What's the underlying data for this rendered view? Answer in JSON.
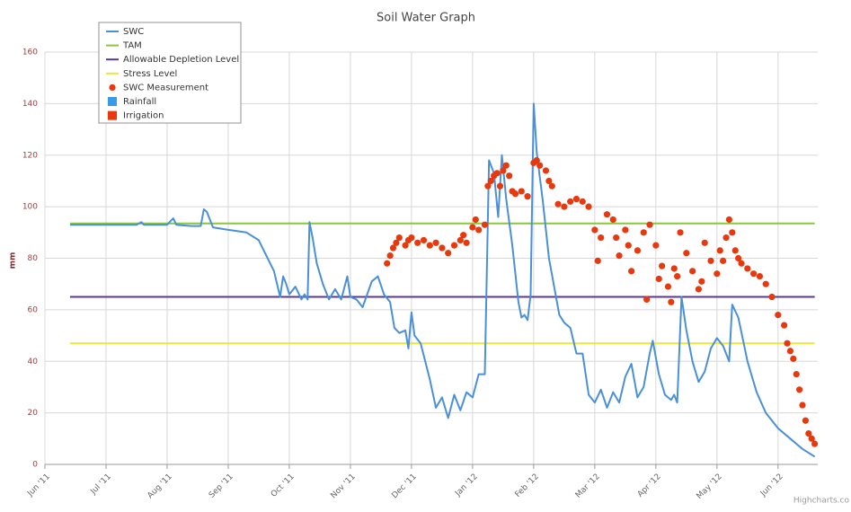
{
  "chart_data": {
    "type": "line",
    "title": "Soil Water Graph",
    "y_label": "mm",
    "credits": "Highcharts.co",
    "xlim": [
      0,
      12.65
    ],
    "xticks": [
      {
        "value": 0,
        "label": "Jun '11"
      },
      {
        "value": 1,
        "label": "Jul '11"
      },
      {
        "value": 2,
        "label": "Aug '11"
      },
      {
        "value": 3,
        "label": "Sep '11"
      },
      {
        "value": 4,
        "label": "Oct '11"
      },
      {
        "value": 5,
        "label": "Nov '11"
      },
      {
        "value": 6,
        "label": "Dec '11"
      },
      {
        "value": 7,
        "label": "Jan '12"
      },
      {
        "value": 8,
        "label": "Feb '12"
      },
      {
        "value": 9,
        "label": "Mar '12"
      },
      {
        "value": 10,
        "label": "Apr '12"
      },
      {
        "value": 11,
        "label": "May '12"
      },
      {
        "value": 12,
        "label": "Jun '12"
      }
    ],
    "ylim": [
      0,
      160
    ],
    "yticks": [
      0,
      20,
      40,
      60,
      80,
      100,
      120,
      140,
      160
    ],
    "grid": true,
    "legend": "top-left",
    "series": [
      {
        "name": "SWC",
        "type": "line",
        "color": "#4a90d9",
        "x": [
          0.41,
          1.0,
          1.5,
          1.58,
          1.62,
          2.0,
          2.1,
          2.15,
          2.4,
          2.55,
          2.6,
          2.65,
          2.75,
          3.0,
          3.3,
          3.5,
          3.75,
          3.85,
          3.9,
          3.95,
          4.0,
          4.1,
          4.2,
          4.25,
          4.3,
          4.33,
          4.38,
          4.45,
          4.55,
          4.65,
          4.75,
          4.85,
          4.95,
          5.0,
          5.1,
          5.2,
          5.35,
          5.45,
          5.55,
          5.65,
          5.72,
          5.8,
          5.9,
          5.95,
          6.0,
          6.05,
          6.15,
          6.3,
          6.4,
          6.5,
          6.6,
          6.7,
          6.8,
          6.9,
          7.0,
          7.1,
          7.2,
          7.27,
          7.35,
          7.42,
          7.48,
          7.55,
          7.65,
          7.75,
          7.8,
          7.85,
          7.9,
          7.95,
          8.0,
          8.05,
          8.15,
          8.25,
          8.35,
          8.42,
          8.5,
          8.6,
          8.7,
          8.8,
          8.9,
          9.0,
          9.1,
          9.2,
          9.3,
          9.4,
          9.5,
          9.6,
          9.7,
          9.8,
          9.9,
          9.95,
          10.05,
          10.15,
          10.25,
          10.3,
          10.35,
          10.42,
          10.5,
          10.6,
          10.7,
          10.8,
          10.9,
          11.0,
          11.1,
          11.2,
          11.25,
          11.35,
          11.5,
          11.65,
          11.8,
          12.0,
          12.2,
          12.4,
          12.6
        ],
        "values": [
          93,
          93,
          93,
          94,
          93,
          93,
          95.5,
          93,
          92.5,
          92.5,
          99,
          98,
          92,
          91,
          90,
          87,
          75,
          65,
          73,
          70,
          66,
          69,
          64,
          66,
          64,
          94,
          88,
          78,
          70,
          64,
          68,
          64,
          73,
          65,
          64,
          61,
          71,
          73,
          66,
          63,
          53,
          51,
          52,
          45,
          59,
          50,
          47,
          33,
          22,
          26,
          18,
          27,
          21,
          28,
          26,
          35,
          35,
          118,
          113,
          96,
          120,
          103,
          85,
          63,
          57,
          58,
          56,
          66,
          140,
          121,
          102,
          80,
          67,
          58,
          55,
          53,
          43,
          43,
          27,
          24,
          29,
          22,
          28,
          24,
          34,
          39,
          26,
          30,
          43,
          48,
          35,
          27,
          25,
          27,
          24,
          65,
          52,
          40,
          32,
          36,
          45,
          49,
          46,
          40,
          62,
          57,
          40,
          28,
          20,
          14,
          10,
          6,
          3
        ]
      },
      {
        "name": "TAM",
        "type": "line",
        "color": "#8cc63f",
        "x": [
          0.41,
          12.6
        ],
        "values": [
          93.5,
          93.5
        ]
      },
      {
        "name": "Allowable Depletion Level",
        "type": "line",
        "color": "#5b3a8c",
        "x": [
          0.41,
          12.6
        ],
        "values": [
          65,
          65
        ]
      },
      {
        "name": "Stress Level",
        "type": "line",
        "color": "#e8e83a",
        "x": [
          0.41,
          12.6
        ],
        "values": [
          47,
          47
        ]
      },
      {
        "name": "SWC Measurement",
        "type": "scatter",
        "color": "#e8380d",
        "x": [
          5.6,
          5.65,
          5.7,
          5.75,
          5.8,
          5.9,
          5.95,
          6.0,
          6.1,
          6.2,
          6.3,
          6.4,
          6.5,
          6.6,
          6.7,
          6.8,
          6.85,
          6.9,
          7.0,
          7.05,
          7.1,
          7.2,
          7.25,
          7.3,
          7.35,
          7.4,
          7.45,
          7.5,
          7.55,
          7.6,
          7.65,
          7.7,
          7.8,
          7.9,
          8.0,
          8.05,
          8.1,
          8.2,
          8.25,
          8.3,
          8.4,
          8.5,
          8.6,
          8.7,
          8.8,
          8.9,
          9.0,
          9.05,
          9.1,
          9.2,
          9.3,
          9.35,
          9.4,
          9.5,
          9.55,
          9.6,
          9.7,
          9.8,
          9.85,
          9.9,
          10.0,
          10.05,
          10.1,
          10.2,
          10.25,
          10.3,
          10.35,
          10.4,
          10.5,
          10.6,
          10.7,
          10.75,
          10.8,
          10.9,
          11.0,
          11.05,
          11.1,
          11.15,
          11.2,
          11.25,
          11.3,
          11.35,
          11.4,
          11.5,
          11.6,
          11.7,
          11.8,
          11.9,
          12.0,
          12.1,
          12.15,
          12.2,
          12.25,
          12.3,
          12.35,
          12.4,
          12.45,
          12.5,
          12.55,
          12.6
        ],
        "values": [
          78,
          81,
          84,
          86,
          88,
          85,
          87,
          88,
          86,
          87,
          85,
          86,
          84,
          82,
          85,
          87,
          89,
          86,
          92,
          95,
          91,
          93,
          108,
          110,
          112,
          113,
          108,
          114,
          116,
          112,
          106,
          105,
          106,
          104,
          117,
          118,
          116,
          114,
          110,
          108,
          101,
          100,
          102,
          103,
          102,
          100,
          91,
          79,
          88,
          97,
          95,
          88,
          81,
          91,
          85,
          75,
          83,
          90,
          64,
          93,
          85,
          72,
          77,
          69,
          63,
          76,
          73,
          90,
          82,
          75,
          68,
          71,
          86,
          79,
          74,
          83,
          79,
          88,
          95,
          90,
          83,
          80,
          78,
          76,
          74,
          73,
          70,
          65,
          58,
          54,
          47,
          44,
          41,
          35,
          29,
          23,
          17,
          12,
          10,
          8
        ]
      },
      {
        "name": "Rainfall",
        "type": "column",
        "color": "#3a9ae8",
        "x": [],
        "values": []
      },
      {
        "name": "Irrigation",
        "type": "column",
        "color": "#e8380d",
        "x": [],
        "values": []
      }
    ]
  }
}
